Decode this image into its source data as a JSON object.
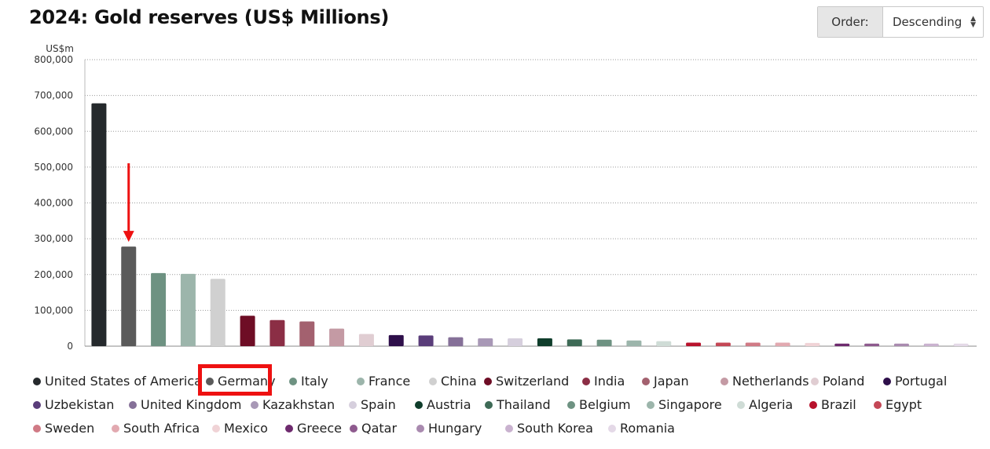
{
  "header": {
    "title": "2024: Gold reserves (US$ Millions)",
    "order_label": "Order:",
    "order_value": "Descending"
  },
  "chart_data": {
    "type": "bar",
    "ylabel": "US$m",
    "ylim": [
      0,
      800000
    ],
    "yticks": [
      0,
      100000,
      200000,
      300000,
      400000,
      500000,
      600000,
      700000,
      800000
    ],
    "ytick_labels": [
      "0",
      "100,000",
      "200,000",
      "300,000",
      "400,000",
      "500,000",
      "600,000",
      "700,000",
      "800,000"
    ],
    "grid": true,
    "legend_position": "bottom",
    "categories": [
      "United States of America",
      "Germany",
      "Italy",
      "France",
      "China",
      "Switzerland",
      "India",
      "Japan",
      "Netherlands",
      "Poland",
      "Portugal",
      "Uzbekistan",
      "United Kingdom",
      "Kazakhstan",
      "Spain",
      "Austria",
      "Thailand",
      "Belgium",
      "Singapore",
      "Algeria",
      "Brazil",
      "Egypt",
      "Sweden",
      "South Africa",
      "Mexico",
      "Greece",
      "Qatar",
      "Hungary",
      "South Korea",
      "Romania"
    ],
    "values": [
      678000,
      278000,
      204000,
      202000,
      188000,
      85000,
      73000,
      69000,
      49000,
      34000,
      31000,
      30000,
      25000,
      22000,
      22000,
      22000,
      19000,
      18000,
      16000,
      14000,
      10000,
      10000,
      10000,
      10000,
      9000,
      7000,
      7000,
      7000,
      7000,
      7000
    ],
    "colors": [
      "#25292c",
      "#5a5a5a",
      "#6e9282",
      "#9cb5ab",
      "#d0d0d0",
      "#6e0d25",
      "#8b2e45",
      "#a3616f",
      "#c49aa4",
      "#e0cdd2",
      "#2e0f4a",
      "#5a3d7a",
      "#857098",
      "#a898b6",
      "#d6cfdd",
      "#0f3d2b",
      "#3e6a56",
      "#6e9282",
      "#9cb5ab",
      "#cfdcd6",
      "#b8122c",
      "#c44756",
      "#d07a85",
      "#e2a9b0",
      "#f0d3d6",
      "#6e2a6e",
      "#8e5a8e",
      "#a98aaf",
      "#c9b2cf",
      "#e4d9e7"
    ],
    "annotation": {
      "type": "arrow",
      "target": "Germany",
      "color": "#ee1111"
    }
  },
  "legend_highlight": "Germany"
}
